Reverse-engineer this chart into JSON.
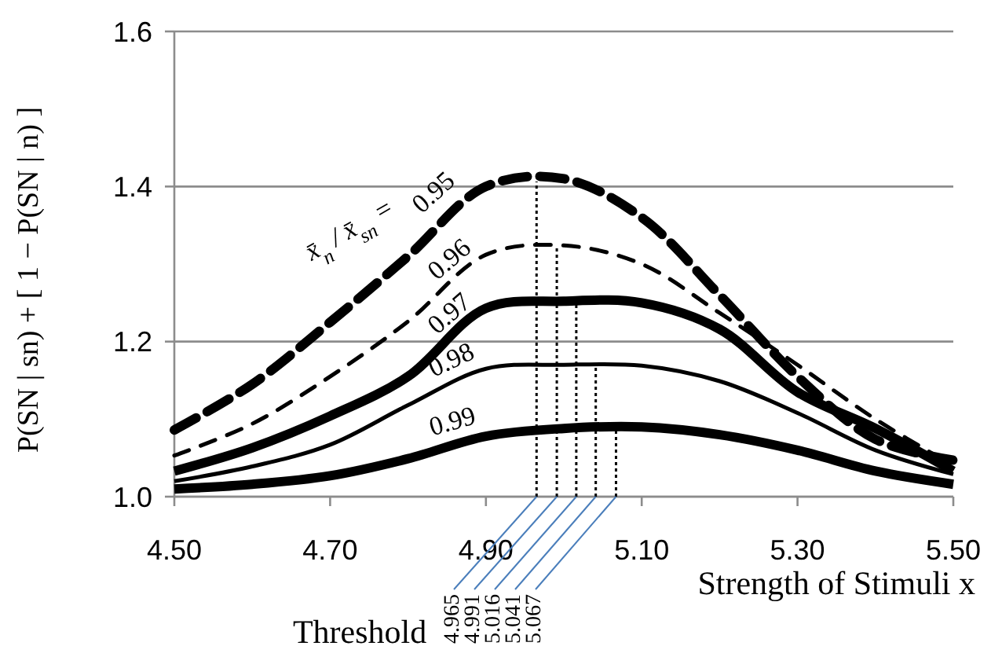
{
  "chart_data": {
    "type": "line",
    "xlabel": "Strength of Stimuli  x",
    "ylabel": "P(SN | sn) + [ 1 − P(SN | n) ]",
    "x": [
      4.5,
      4.6,
      4.7,
      4.8,
      4.9,
      5.0,
      5.1,
      5.2,
      5.3,
      5.4,
      5.5
    ],
    "series": [
      {
        "name": "0.95",
        "color": "#000000",
        "line_style": "dashed",
        "values": [
          1.086,
          1.145,
          1.225,
          1.31,
          1.4,
          1.41,
          1.36,
          1.26,
          1.155,
          1.074,
          1.047
        ]
      },
      {
        "name": "0.96",
        "color": "#000000",
        "line_style": "dashed",
        "values": [
          1.053,
          1.094,
          1.155,
          1.226,
          1.312,
          1.324,
          1.3,
          1.237,
          1.17,
          1.1,
          1.04
        ]
      },
      {
        "name": "0.97",
        "color": "#000000",
        "line_style": "solid",
        "values": [
          1.033,
          1.063,
          1.104,
          1.155,
          1.243,
          1.252,
          1.25,
          1.216,
          1.135,
          1.088,
          1.033
        ]
      },
      {
        "name": "0.98",
        "color": "#000000",
        "line_style": "solid",
        "values": [
          1.02,
          1.039,
          1.067,
          1.118,
          1.165,
          1.17,
          1.169,
          1.149,
          1.108,
          1.06,
          1.029
        ]
      },
      {
        "name": "0.99",
        "color": "#000000",
        "line_style": "solid",
        "values": [
          1.01,
          1.016,
          1.027,
          1.049,
          1.078,
          1.088,
          1.09,
          1.08,
          1.06,
          1.033,
          1.016
        ]
      }
    ],
    "xlim": [
      4.5,
      5.5
    ],
    "xticks": [
      {
        "value": 4.5,
        "label": "4.50"
      },
      {
        "value": 4.7,
        "label": "4.70"
      },
      {
        "value": 4.9,
        "label": "4.90"
      },
      {
        "value": 5.1,
        "label": "5.10"
      },
      {
        "value": 5.3,
        "label": "5.30"
      },
      {
        "value": 5.5,
        "label": "5.50"
      }
    ],
    "ylim": [
      1.0,
      1.6
    ],
    "yticks": [
      {
        "value": 1.0,
        "label": "1.0"
      },
      {
        "value": 1.2,
        "label": "1.2"
      },
      {
        "value": 1.4,
        "label": "1.4"
      },
      {
        "value": 1.6,
        "label": "1.6"
      }
    ],
    "grid": "y",
    "ref_lines": [
      {
        "axis": "x",
        "value": 4.965,
        "label": "4.965",
        "line_style": "dotted",
        "color": "#000000"
      },
      {
        "axis": "x",
        "value": 4.991,
        "label": "4.991",
        "line_style": "dotted",
        "color": "#000000"
      },
      {
        "axis": "x",
        "value": 5.016,
        "label": "5.016",
        "line_style": "dotted",
        "color": "#000000"
      },
      {
        "axis": "x",
        "value": 5.041,
        "label": "5.041",
        "line_style": "dotted",
        "color": "#000000"
      },
      {
        "axis": "x",
        "value": 5.067,
        "label": "5.067",
        "line_style": "dotted",
        "color": "#000000"
      }
    ],
    "annotations": [
      {
        "text": "Threshold",
        "x": 4.965,
        "y": 1.0
      },
      "x̄$_{n}$ / x̄$_{sn}$ ="
    ]
  }
}
